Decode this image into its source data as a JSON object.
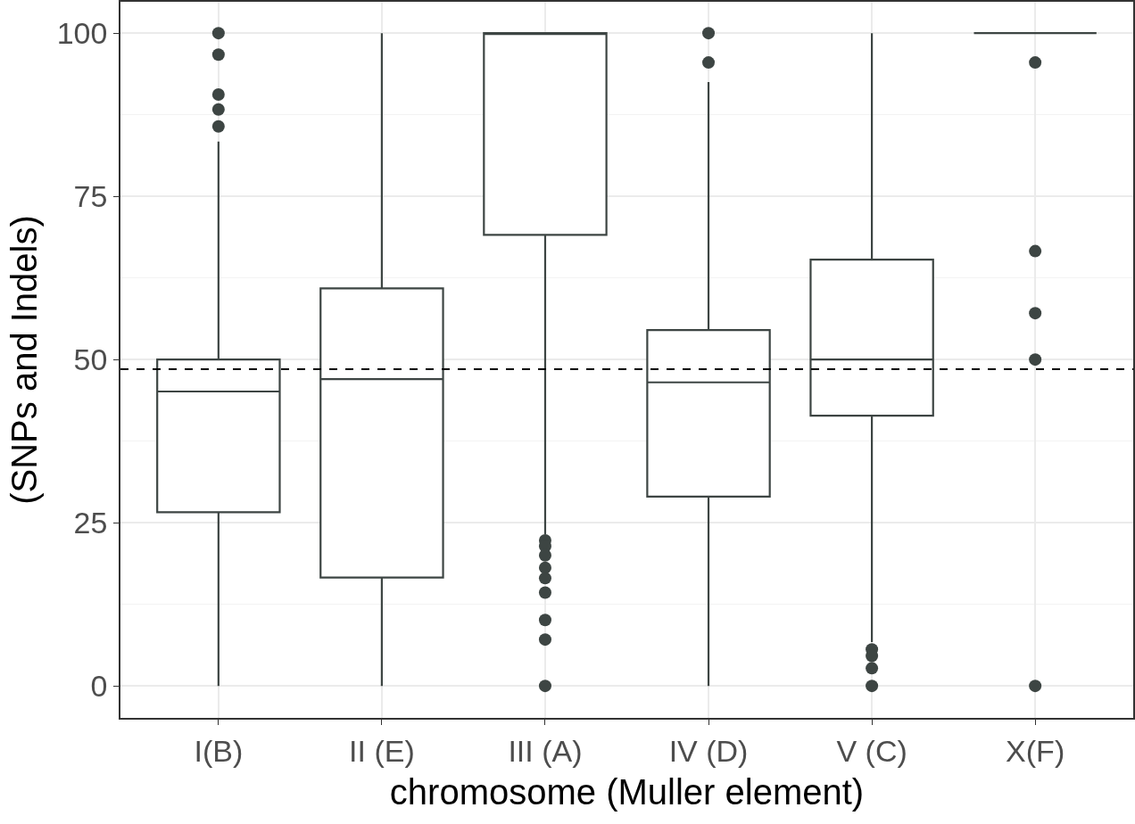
{
  "chart_data": {
    "type": "box",
    "xlabel": "chromosome (Muller element)",
    "ylabel": "(SNPs and Indels)",
    "categories": [
      "I(B)",
      "II (E)",
      "III (A)",
      "IV (D)",
      "V (C)",
      "X(F)"
    ],
    "color": "#3d4543",
    "boxes": [
      {
        "low": 0,
        "q1": 26.6,
        "median": 45.1,
        "q3": 50,
        "high": 83.4,
        "outliers": [
          100,
          96.7,
          90.6,
          88.3,
          85.7
        ]
      },
      {
        "low": 0,
        "q1": 16.6,
        "median": 47,
        "q3": 60.9,
        "high": 100
      },
      {
        "low": 23.2,
        "q1": 69.1,
        "median": 100,
        "q3": 100,
        "high": 100,
        "outliers": [
          22.3,
          21.4,
          20,
          18.1,
          16.5,
          14.3,
          10.1,
          7.1,
          0
        ]
      },
      {
        "low": 0,
        "q1": 29,
        "median": 46.5,
        "q3": 54.5,
        "high": 92.5,
        "outliers": [
          100,
          95.5
        ]
      },
      {
        "low": 6.7,
        "q1": 41.4,
        "median": 50,
        "q3": 65.3,
        "high": 100,
        "outliers": [
          5.6,
          4.6,
          2.7,
          0
        ]
      },
      {
        "low": 100,
        "q1": 100,
        "median": 100,
        "q3": 100,
        "high": 100,
        "outliers": [
          95.5,
          66.6,
          57.1,
          50,
          0
        ]
      }
    ],
    "ylim": [
      -4.9,
      104.8
    ],
    "yticks": [
      0,
      {
        "value": 12.5,
        "label": null
      },
      25,
      {
        "value": 37.5,
        "label": null
      },
      50,
      {
        "value": 62.5,
        "label": null
      },
      75,
      {
        "value": 87.5,
        "label": null
      },
      100
    ],
    "grid": true,
    "ref_lines": [
      {
        "axis": "y",
        "value": 48.5,
        "color": "#000000",
        "line_style": "dashed"
      }
    ]
  }
}
